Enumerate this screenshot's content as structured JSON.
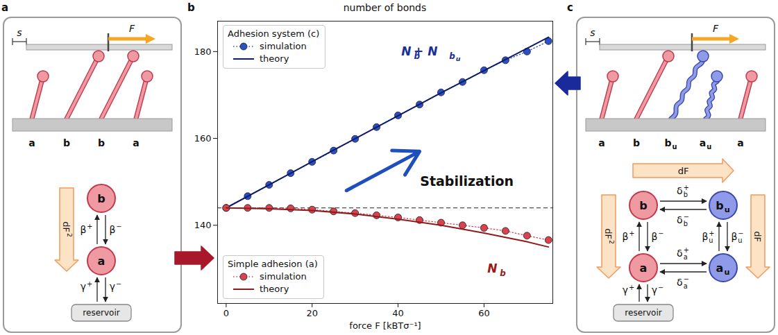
{
  "chart_data": {
    "panel_letter": "b",
    "type": "line",
    "title": "number of bonds",
    "x_label": "force F [kBTσ⁻¹]",
    "xlim": [
      -2,
      76
    ],
    "xticks": [
      0,
      20,
      40,
      60
    ],
    "ylim": [
      122,
      187
    ],
    "yticks": [
      140,
      160,
      180
    ],
    "grid": false,
    "legend": "left",
    "legend_groups": [
      "Adhesion system (c)",
      "Simple adhesion (a)"
    ],
    "reference_line": {
      "y": 144,
      "line_style": "dashed",
      "color": "#222222"
    },
    "series": [
      {
        "name": "simulation",
        "group": "Adhesion system (c)",
        "marker": "circle",
        "line_style": "dotted",
        "color": "#2b4fc4",
        "x": [
          0,
          5,
          10,
          15,
          20,
          25,
          30,
          35,
          40,
          45,
          50,
          55,
          60,
          65,
          70,
          75
        ],
        "values": [
          144,
          146.7,
          149.3,
          152,
          154.6,
          157.2,
          159.9,
          162.6,
          165.3,
          167.8,
          170.6,
          173,
          175.7,
          178,
          180,
          182.4
        ]
      },
      {
        "name": "theory",
        "group": "Adhesion system (c)",
        "marker": "none",
        "line_style": "solid",
        "color": "#0d1a6b",
        "x": [
          0,
          25,
          50,
          75
        ],
        "values": [
          144,
          157.3,
          170.5,
          183.3
        ]
      },
      {
        "name": "simulation",
        "group": "Simple adhesion (a)",
        "marker": "circle",
        "line_style": "dotted",
        "color": "#d9434f",
        "x": [
          0,
          5,
          10,
          15,
          20,
          25,
          30,
          35,
          40,
          45,
          50,
          55,
          60,
          65,
          70,
          75
        ],
        "values": [
          144,
          144,
          144,
          143.9,
          143.6,
          143.2,
          142.8,
          142.3,
          141.8,
          141.2,
          140.6,
          140,
          139.4,
          138.7,
          137.6,
          136.6
        ]
      },
      {
        "name": "theory",
        "group": "Simple adhesion (a)",
        "marker": "none",
        "line_style": "solid",
        "color": "#8e1b1b",
        "x": [
          0,
          10,
          20,
          30,
          40,
          50,
          60,
          70,
          75
        ],
        "values": [
          144,
          143.8,
          143.4,
          142.6,
          141.4,
          140,
          138.2,
          136.2,
          135
        ]
      }
    ],
    "curve_labels": [
      {
        "parts": [
          {
            "base": "N",
            "sub": "b"
          },
          {
            "base": " + N",
            "sub": "b",
            "subsub": "u"
          }
        ],
        "x": 42,
        "y": 180,
        "color": "#1a2f9a"
      },
      {
        "parts": [
          {
            "base": "N",
            "sub": "b"
          }
        ],
        "x": 62,
        "y": 130,
        "color": "#9a1a1a"
      }
    ],
    "annotation": {
      "text": "Stabilization",
      "x": 56,
      "y": 150,
      "arrow": [
        28,
        148,
        45,
        157
      ],
      "color": "#1f4fbf"
    }
  },
  "diagrams": [
    {
      "letter": "a",
      "s_label": {
        "base": "s"
      },
      "force_label": {
        "base": "F"
      },
      "pins": [
        {
          "base": "a"
        },
        {
          "base": "b"
        },
        {
          "base": "b"
        },
        {
          "base": "a"
        }
      ],
      "nodes": [
        {
          "base": "b"
        },
        {
          "base": "a"
        },
        {
          "base": "reservoir"
        }
      ],
      "transitions": [
        {
          "from": 1,
          "to": 0,
          "label": {
            "base": "β",
            "sup": "+"
          }
        },
        {
          "from": 0,
          "to": 1,
          "label": {
            "base": "β",
            "sup": "−"
          }
        },
        {
          "from": 2,
          "to": 1,
          "label": {
            "base": "γ",
            "sup": "+"
          }
        },
        {
          "from": 1,
          "to": 2,
          "label": {
            "base": "γ",
            "sup": "−"
          }
        }
      ],
      "force_arrows": [
        {
          "from": 0,
          "to": 1,
          "label": {
            "base": "dF",
            "sup": "2"
          }
        }
      ]
    },
    {
      "letter": "c",
      "s_label": {
        "base": "s"
      },
      "force_label": {
        "base": "F"
      },
      "pins": [
        {
          "base": "a"
        },
        {
          "base": "b"
        },
        {
          "base": "b",
          "sub": "u"
        },
        {
          "base": "a",
          "sub": "u"
        },
        {
          "base": "a"
        }
      ],
      "nodes": [
        {
          "base": "b"
        },
        {
          "base": "b",
          "sub": "u"
        },
        {
          "base": "a"
        },
        {
          "base": "a",
          "sub": "u"
        },
        {
          "base": "reservoir"
        }
      ],
      "transitions": [
        {
          "from": 0,
          "to": 1,
          "label": {
            "base": "δ",
            "sub": "b",
            "sup": "+"
          }
        },
        {
          "from": 1,
          "to": 0,
          "label": {
            "base": "δ",
            "sub": "b",
            "sup": "−"
          }
        },
        {
          "from": 2,
          "to": 0,
          "label": {
            "base": "β",
            "sup": "+"
          }
        },
        {
          "from": 0,
          "to": 2,
          "label": {
            "base": "β",
            "sup": "−"
          }
        },
        {
          "from": 3,
          "to": 1,
          "label": {
            "base": "β",
            "sub": "u",
            "sup": "+"
          }
        },
        {
          "from": 1,
          "to": 3,
          "label": {
            "base": "β",
            "sub": "u",
            "sup": "−"
          }
        },
        {
          "from": 2,
          "to": 3,
          "label": {
            "base": "δ",
            "sub": "a",
            "sup": "+"
          }
        },
        {
          "from": 3,
          "to": 2,
          "label": {
            "base": "δ",
            "sub": "a",
            "sup": "−"
          }
        },
        {
          "from": 4,
          "to": 2,
          "label": {
            "base": "γ",
            "sup": "+"
          }
        },
        {
          "from": 2,
          "to": 4,
          "label": {
            "base": "γ",
            "sup": "−"
          }
        }
      ],
      "force_arrows": [
        {
          "from": 0,
          "to": 1,
          "label": {
            "base": "dF"
          }
        },
        {
          "from": 0,
          "to": 2,
          "label": {
            "base": "dF",
            "sup": "2"
          }
        },
        {
          "from": 1,
          "to": 3,
          "label": {
            "base": "dF"
          }
        }
      ]
    }
  ]
}
